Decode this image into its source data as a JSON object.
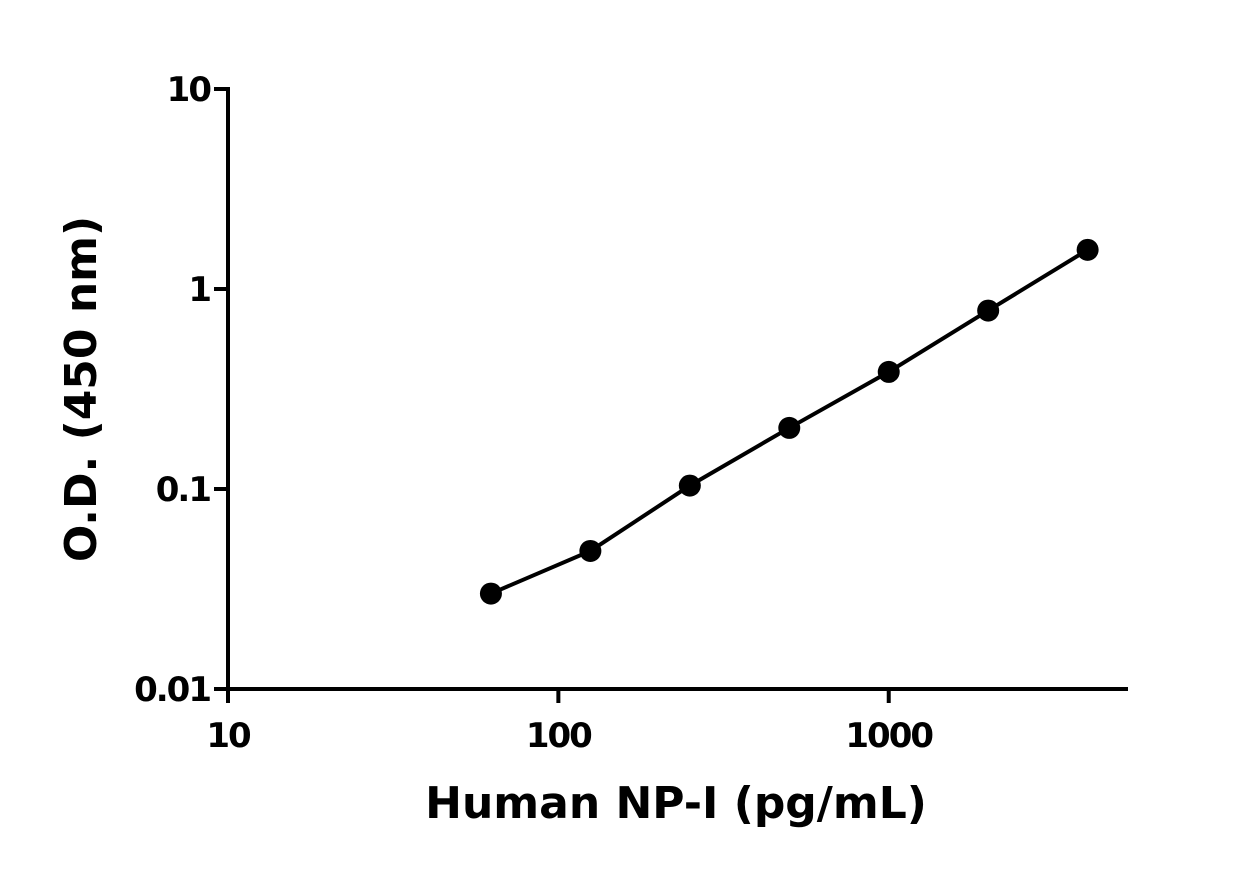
{
  "chart_data": {
    "type": "line",
    "x_label": "Human NP-I (pg/mL)",
    "y_label": "O.D. (450 nm)",
    "x": [
      62.5,
      125,
      250,
      500,
      1000,
      2000,
      4000
    ],
    "values": [
      0.03,
      0.049,
      0.104,
      0.202,
      0.385,
      0.78,
      1.57
    ],
    "color": "#000000",
    "x_log": true,
    "y_log": true,
    "xlim": [
      10,
      5300
    ],
    "xticks": [
      10,
      100,
      1000
    ],
    "ylim": [
      0.01,
      10
    ],
    "yticks": [
      0.01,
      0.1,
      1,
      10
    ]
  }
}
